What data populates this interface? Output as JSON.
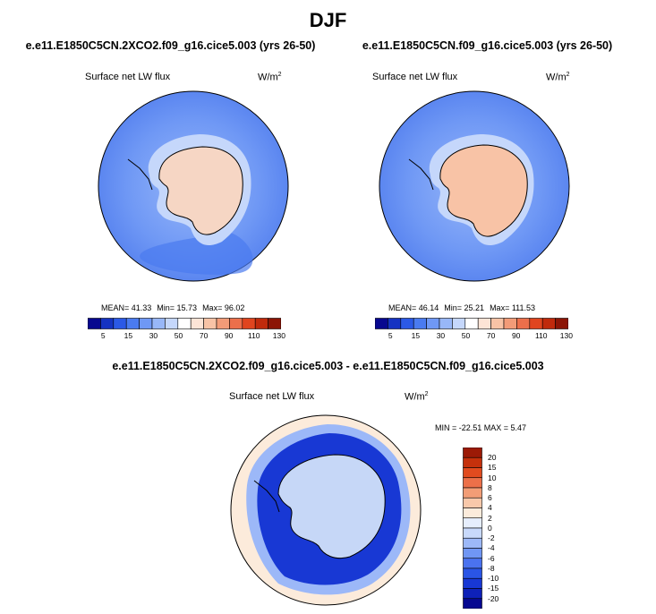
{
  "header": {
    "season": "DJF"
  },
  "panels": [
    {
      "case": "e.e11.E1850C5CN.2XCO2.f09_g16.cice5.003 (yrs 26-50)",
      "variable": "Surface net LW flux",
      "units": "W/m",
      "stats": {
        "mean": "MEAN= 41.33",
        "min": "Min= 15.73",
        "max": "Max= 96.02"
      }
    },
    {
      "case": "e.e11.E1850C5CN.f09_g16.cice5.003 (yrs 26-50)",
      "variable": "Surface net LW flux",
      "units": "W/m",
      "stats": {
        "mean": "MEAN= 46.14",
        "min": "Min= 25.21",
        "max": "Max= 111.53"
      }
    },
    {
      "case": "e.e11.E1850C5CN.2XCO2.f09_g16.cice5.003 - e.e11.E1850C5CN.f09_g16.cice5.003",
      "variable": "Surface net LW flux",
      "units": "W/m",
      "stats": {
        "minmax": "MIN = -22.51  MAX =   5.47"
      }
    }
  ],
  "units_exponent": "2",
  "colors": {
    "abs_scale": [
      "#08088f",
      "#1533c2",
      "#2b59e6",
      "#4a7bf0",
      "#6f98f5",
      "#98b7f8",
      "#c5d7fb",
      "#ffffff",
      "#fde4d6",
      "#f8c3a6",
      "#f29b78",
      "#ec6f4b",
      "#e0451f",
      "#c02a0c",
      "#8c1506"
    ],
    "diff_scale": [
      "#060891",
      "#0e21b8",
      "#1838d4",
      "#2a55e6",
      "#4a72ef",
      "#7096f4",
      "#9cb8f8",
      "#c8d9fb",
      "#e6eefd",
      "#fcebdb",
      "#f8c8aa",
      "#f29d76",
      "#ec7049",
      "#e14b1f",
      "#c5310c",
      "#9c1a06"
    ],
    "land": "#f6d6c4",
    "land_diff": "#c6d7f7",
    "ocean_abs": "#6f98f5",
    "ocean_diff": "#1030c8"
  },
  "chart_data": [
    {
      "type": "heatmap",
      "title": "e.e11.E1850C5CN.2XCO2.f09_g16.cice5.003 (yrs 26-50)",
      "variable": "Surface net LW flux",
      "units": "W/m^2",
      "colorbar_ticks": [
        "5",
        "15",
        "30",
        "50",
        "70",
        "90",
        "110",
        "130"
      ],
      "mean": 41.33,
      "min": 15.73,
      "max": 96.02
    },
    {
      "type": "heatmap",
      "title": "e.e11.E1850C5CN.f09_g16.cice5.003 (yrs 26-50)",
      "variable": "Surface net LW flux",
      "units": "W/m^2",
      "colorbar_ticks": [
        "5",
        "15",
        "30",
        "50",
        "70",
        "90",
        "110",
        "130"
      ],
      "mean": 46.14,
      "min": 25.21,
      "max": 111.53
    },
    {
      "type": "heatmap",
      "title": "e.e11.E1850C5CN.2XCO2.f09_g16.cice5.003 - e.e11.E1850C5CN.f09_g16.cice5.003",
      "variable": "Surface net LW flux",
      "units": "W/m^2",
      "colorbar_ticks": [
        "20",
        "15",
        "10",
        "8",
        "6",
        "4",
        "2",
        "0",
        "-2",
        "-4",
        "-6",
        "-8",
        "-10",
        "-15",
        "-20"
      ],
      "min": -22.51,
      "max": 5.47
    }
  ]
}
